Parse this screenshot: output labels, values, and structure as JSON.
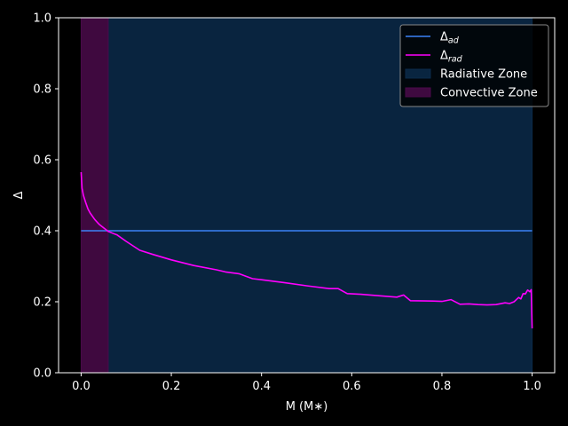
{
  "chart_data": {
    "type": "line",
    "title": "",
    "xlabel": "M (M∗)",
    "ylabel": "Δ",
    "xlim": [
      -0.05,
      1.05
    ],
    "ylim": [
      0.0,
      1.0
    ],
    "xticks": [
      0.0,
      0.2,
      0.4,
      0.6,
      0.8,
      1.0
    ],
    "xtick_labels": [
      "0.0",
      "0.2",
      "0.4",
      "0.6",
      "0.8",
      "1.0"
    ],
    "yticks": [
      0.0,
      0.2,
      0.4,
      0.6,
      0.8,
      1.0
    ],
    "ytick_labels": [
      "0.0",
      "0.2",
      "0.4",
      "0.6",
      "0.8",
      "1.0"
    ],
    "grid": false,
    "legend_position": "top-right",
    "series": [
      {
        "name": "Δad",
        "legend": {
          "base": "Δ",
          "sub": "ad"
        },
        "color": "#3b82f6",
        "x": [
          0.0,
          1.0
        ],
        "y": [
          0.4,
          0.4
        ]
      },
      {
        "name": "Δrad",
        "legend": {
          "base": "Δ",
          "sub": "rad"
        },
        "color": "#ff00ff",
        "x": [
          0.0,
          0.002,
          0.005,
          0.01,
          0.015,
          0.02,
          0.03,
          0.04,
          0.05,
          0.06,
          0.08,
          0.1,
          0.13,
          0.16,
          0.2,
          0.25,
          0.3,
          0.32,
          0.35,
          0.38,
          0.4,
          0.45,
          0.5,
          0.55,
          0.57,
          0.59,
          0.62,
          0.65,
          0.7,
          0.71,
          0.715,
          0.73,
          0.78,
          0.8,
          0.82,
          0.84,
          0.86,
          0.88,
          0.9,
          0.92,
          0.94,
          0.95,
          0.96,
          0.97,
          0.975,
          0.98,
          0.985,
          0.99,
          0.995,
          0.998,
          1.0
        ],
        "y": [
          0.565,
          0.52,
          0.5,
          0.48,
          0.462,
          0.45,
          0.432,
          0.418,
          0.408,
          0.398,
          0.388,
          0.37,
          0.345,
          0.333,
          0.318,
          0.302,
          0.29,
          0.284,
          0.279,
          0.265,
          0.262,
          0.254,
          0.245,
          0.237,
          0.237,
          0.223,
          0.221,
          0.218,
          0.213,
          0.217,
          0.219,
          0.203,
          0.202,
          0.201,
          0.206,
          0.193,
          0.194,
          0.192,
          0.191,
          0.192,
          0.197,
          0.195,
          0.2,
          0.212,
          0.208,
          0.223,
          0.222,
          0.233,
          0.228,
          0.234,
          0.125
        ]
      }
    ],
    "regions": [
      {
        "name": "Radiative Zone",
        "x_start": 0.06,
        "x_end": 1.0,
        "color": "#0a2a4a"
      },
      {
        "name": "Convective Zone",
        "x_start": 0.0,
        "x_end": 0.06,
        "color": "#4a0a4a"
      }
    ]
  }
}
